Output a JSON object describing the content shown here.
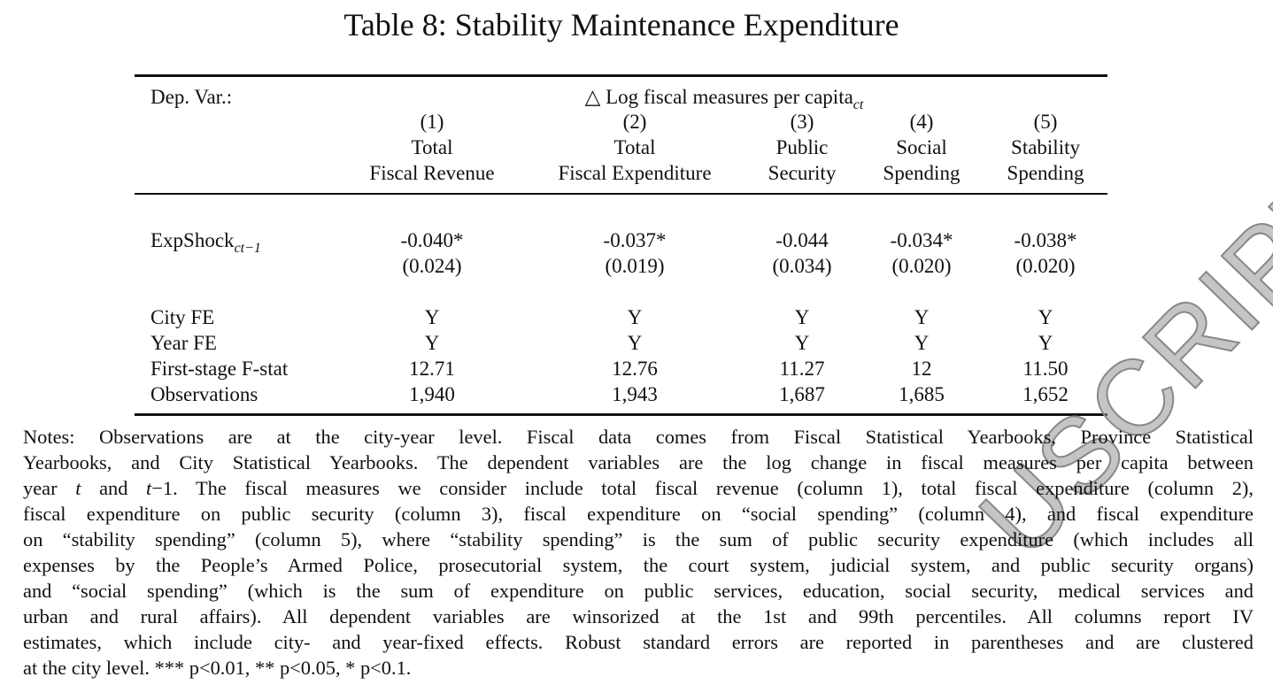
{
  "title": "Table 8: Stability Maintenance Expenditure",
  "table": {
    "dep_var_label": "Dep. Var.:",
    "dep_var": {
      "text": "△ Log fiscal measures per capita",
      "sub": "ct"
    },
    "columns": [
      {
        "number": "(1)",
        "lines": [
          "Total",
          "Fiscal Revenue"
        ]
      },
      {
        "number": "(2)",
        "lines": [
          "Total",
          "Fiscal Expenditure"
        ]
      },
      {
        "number": "(3)",
        "lines": [
          "Public",
          "Security"
        ]
      },
      {
        "number": "(4)",
        "lines": [
          "Social",
          "Spending"
        ]
      },
      {
        "number": "(5)",
        "lines": [
          "Stability",
          "Spending"
        ]
      }
    ],
    "regressor": {
      "label": "ExpShock",
      "sub": "ct−1",
      "coefficients": [
        "-0.040*",
        "-0.037*",
        "-0.044",
        "-0.034*",
        "-0.038*"
      ],
      "std_errors": [
        "(0.024)",
        "(0.019)",
        "(0.034)",
        "(0.020)",
        "(0.020)"
      ]
    },
    "rows": [
      {
        "label": "City FE",
        "cells": [
          "Y",
          "Y",
          "Y",
          "Y",
          "Y"
        ]
      },
      {
        "label": "Year FE",
        "cells": [
          "Y",
          "Y",
          "Y",
          "Y",
          "Y"
        ]
      },
      {
        "label": "First-stage F-stat",
        "cells": [
          "12.71",
          "12.76",
          "11.27",
          "12",
          "11.50"
        ]
      },
      {
        "label": "Observations",
        "cells": [
          "1,940",
          "1,943",
          "1,687",
          "1,685",
          "1,652"
        ]
      }
    ]
  },
  "notes": {
    "lines": [
      "Notes: Observations are at the city-year level. Fiscal data comes from Fiscal Statistical Yearbooks, Province Statistical",
      "Yearbooks, and City Statistical Yearbooks. The dependent variables are the log change in fiscal measures per capita between",
      [
        "year ",
        "t",
        " and ",
        "t",
        "−1. The fiscal measures we consider include total fiscal revenue (column 1), total fiscal expenditure (column 2),"
      ],
      "fiscal expenditure on public security (column 3), fiscal expenditure on “social spending” (column 4), and fiscal expenditure",
      "on “stability spending” (column 5), where “stability spending” is the sum of public security expenditure (which includes all",
      "expenses by the People’s Armed Police, prosecutorial system, the court system, judicial system, and public security organs)",
      "and “social spending” (which is the sum of expenditure on public services, education, social security, medical services and",
      "urban and rural affairs). All dependent variables are winsorized at the 1st and 99th percentiles. All columns report IV",
      "estimates, which include city- and year-fixed effects. Robust standard errors are reported in parentheses and are clustered",
      "at the city level. *** p<0.01, ** p<0.05, * p<0.1."
    ]
  },
  "watermark": "USCRIPT"
}
